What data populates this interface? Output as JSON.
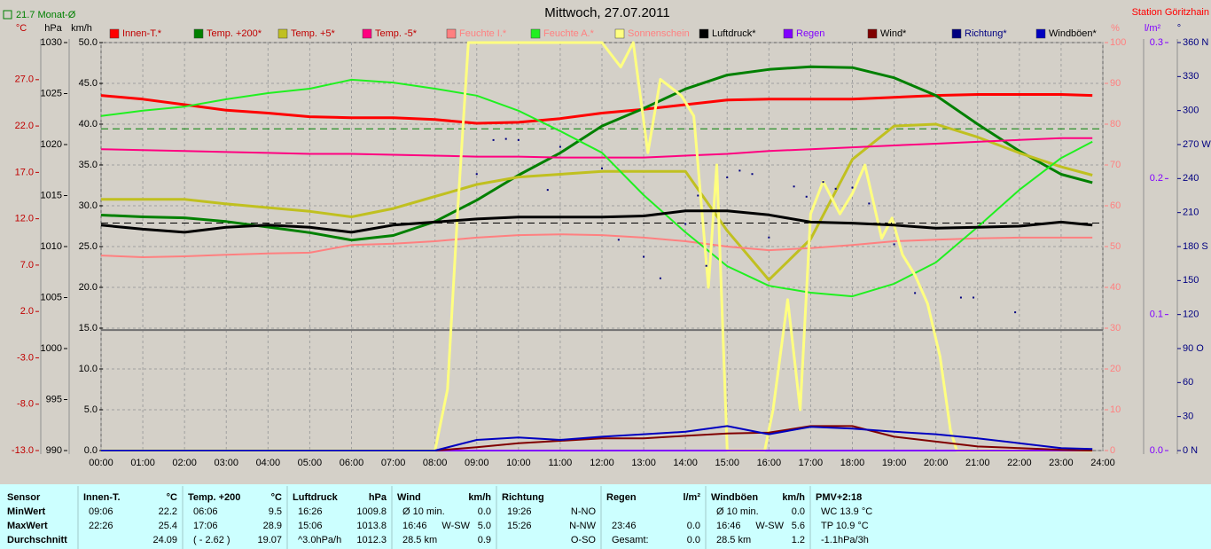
{
  "chart_data": {
    "type": "line",
    "title": "Mittwoch, 27.07.2011",
    "station": "Station Göritzhain",
    "xlim": [
      0,
      24
    ],
    "xticks": [
      {
        "value": 0,
        "label": "00:00"
      },
      {
        "value": 1,
        "label": "01:00"
      },
      {
        "value": 2,
        "label": "02:00"
      },
      {
        "value": 3,
        "label": "03:00"
      },
      {
        "value": 4,
        "label": "04:00"
      },
      {
        "value": 5,
        "label": "05:00"
      },
      {
        "value": 6,
        "label": "06:00"
      },
      {
        "value": 7,
        "label": "07:00"
      },
      {
        "value": 8,
        "label": "08:00"
      },
      {
        "value": 9,
        "label": "09:00"
      },
      {
        "value": 10,
        "label": "10:00"
      },
      {
        "value": 11,
        "label": "11:00"
      },
      {
        "value": 12,
        "label": "12:00"
      },
      {
        "value": 13,
        "label": "13:00"
      },
      {
        "value": 14,
        "label": "14:00"
      },
      {
        "value": 15,
        "label": "15:00"
      },
      {
        "value": 16,
        "label": "16:00"
      },
      {
        "value": 17,
        "label": "17:00"
      },
      {
        "value": 18,
        "label": "18:00"
      },
      {
        "value": 19,
        "label": "19:00"
      },
      {
        "value": 20,
        "label": "20:00"
      },
      {
        "value": 21,
        "label": "21:00"
      },
      {
        "value": 22,
        "label": "22:00"
      },
      {
        "value": 23,
        "label": "23:00"
      },
      {
        "value": 24,
        "label": "24:00"
      }
    ],
    "grid": true,
    "axes": {
      "temp": {
        "title": "°C",
        "color": "#c00000",
        "lim": [
          -13,
          31
        ],
        "ticks": [
          {
            "value": -13,
            "label": "-13.0"
          },
          {
            "value": -8,
            "label": "-8.0"
          },
          {
            "value": -3,
            "label": "-3.0"
          },
          {
            "value": 2,
            "label": "2.0"
          },
          {
            "value": 7,
            "label": "7.0"
          },
          {
            "value": 12,
            "label": "12.0"
          },
          {
            "value": 17,
            "label": "17.0"
          },
          {
            "value": 22,
            "label": "22.0"
          },
          {
            "value": 27,
            "label": "27.0"
          }
        ]
      },
      "press": {
        "title": "hPa",
        "color": "#000000",
        "lim": [
          990,
          1030
        ],
        "ticks": [
          990,
          995,
          1000,
          1005,
          1010,
          1015,
          1020,
          1025,
          1030
        ]
      },
      "speed": {
        "title": "km/h",
        "color": "#000000",
        "lim": [
          0,
          50
        ],
        "ticks": [
          {
            "value": 0,
            "label": "0.0"
          },
          {
            "value": 5,
            "label": "5.0"
          },
          {
            "value": 10,
            "label": "10.0"
          },
          {
            "value": 15,
            "label": "15.0"
          },
          {
            "value": 20,
            "label": "20.0"
          },
          {
            "value": 25,
            "label": "25.0"
          },
          {
            "value": 30,
            "label": "30.0"
          },
          {
            "value": 35,
            "label": "35.0"
          },
          {
            "value": 40,
            "label": "40.0"
          },
          {
            "value": 45,
            "label": "45.0"
          },
          {
            "value": 50,
            "label": "50.0"
          }
        ]
      },
      "pct": {
        "title": "%",
        "color": "#ff8080",
        "lim": [
          0,
          100
        ],
        "ticks": [
          0,
          10,
          20,
          30,
          40,
          50,
          60,
          70,
          80,
          90,
          100
        ]
      },
      "rain": {
        "title": "l/m²",
        "color": "#8000ff",
        "lim": [
          0,
          0.3
        ],
        "ticks": [
          {
            "value": 0,
            "label": "0.0"
          },
          0.1,
          0.2,
          0.3
        ]
      },
      "dir": {
        "title": "°",
        "color": "#000080",
        "lim": [
          0,
          360
        ],
        "ticks": [
          {
            "value": 0,
            "label": "0 N"
          },
          30,
          60,
          {
            "value": 90,
            "label": "90 O"
          },
          120,
          150,
          {
            "value": 180,
            "label": "180 S"
          },
          210,
          240,
          {
            "value": 270,
            "label": "270 W"
          },
          300,
          330,
          {
            "value": 360,
            "label": "360 N"
          }
        ]
      }
    },
    "reference_lines": [
      {
        "axis": "temp",
        "value": 21.7,
        "label": "21.7 Monat-Ø",
        "color": "#008000",
        "dashed": true
      },
      {
        "axis": "temp",
        "value": 0,
        "color": "#707070",
        "dashed": false
      },
      {
        "axis": "press",
        "value": 1012.3,
        "color": "#000000",
        "dashed": true
      }
    ],
    "x": [
      0,
      1,
      2,
      3,
      4,
      5,
      6,
      7,
      8,
      9,
      10,
      11,
      12,
      13,
      14,
      15,
      16,
      17,
      18,
      19,
      20,
      21,
      22,
      23,
      23.75
    ],
    "series": [
      {
        "name": "Innen-T.*",
        "axis": "temp",
        "color": "#ff0000",
        "width": 3,
        "values": [
          25.3,
          24.9,
          24.3,
          23.7,
          23.4,
          23.0,
          22.9,
          22.9,
          22.7,
          22.3,
          22.4,
          22.8,
          23.4,
          23.8,
          24.3,
          24.8,
          24.9,
          24.9,
          24.9,
          25.1,
          25.3,
          25.4,
          25.4,
          25.4,
          25.3
        ]
      },
      {
        "name": "Temp. +200*",
        "axis": "temp",
        "color": "#008000",
        "width": 3,
        "values": [
          12.4,
          12.2,
          12.1,
          11.7,
          11.1,
          10.5,
          9.7,
          10.2,
          11.7,
          14.0,
          16.7,
          19.1,
          22.0,
          23.9,
          26.0,
          27.5,
          28.1,
          28.4,
          28.3,
          27.2,
          25.3,
          22.2,
          19.3,
          16.8,
          15.9
        ]
      },
      {
        "name": "Temp. +5*",
        "axis": "temp",
        "color": "#c0c020",
        "width": 3,
        "values": [
          14.1,
          14.1,
          14.1,
          13.6,
          13.2,
          12.8,
          12.2,
          13.1,
          14.4,
          15.7,
          16.5,
          16.8,
          17.1,
          17.1,
          17.1,
          10.7,
          5.4,
          9.8,
          18.4,
          22.0,
          22.2,
          20.8,
          19.1,
          17.6,
          16.7
        ]
      },
      {
        "name": "Temp. -5*",
        "axis": "temp",
        "color": "#ff0080",
        "width": 2,
        "values": [
          19.5,
          19.4,
          19.3,
          19.2,
          19.1,
          19.0,
          19.0,
          18.9,
          18.8,
          18.7,
          18.7,
          18.6,
          18.6,
          18.6,
          18.8,
          19.0,
          19.3,
          19.5,
          19.7,
          19.9,
          20.1,
          20.3,
          20.5,
          20.7,
          20.7
        ]
      },
      {
        "name": "Feuchte I.*",
        "axis": "pct",
        "color": "#ff8080",
        "width": 2,
        "values": [
          47.8,
          47.4,
          47.6,
          48.0,
          48.3,
          48.5,
          50.4,
          50.7,
          51.3,
          52.2,
          52.8,
          53.0,
          52.8,
          52.2,
          51.3,
          50.0,
          49.1,
          49.6,
          50.4,
          51.3,
          51.7,
          52.0,
          52.2,
          52.2,
          52.2
        ]
      },
      {
        "name": "Feuchte A.*",
        "axis": "pct",
        "color": "#20f020",
        "width": 2,
        "values": [
          82.0,
          83.3,
          84.3,
          86.1,
          87.6,
          88.7,
          90.9,
          90.2,
          88.7,
          87.0,
          83.3,
          78.3,
          73.0,
          62.6,
          53.5,
          45.2,
          40.4,
          38.7,
          37.8,
          40.9,
          46.1,
          54.8,
          63.9,
          71.7,
          75.7
        ]
      },
      {
        "name": "Sonnenschein",
        "axis": "pct",
        "color": "#ffff80",
        "width": 3,
        "x": [
          0,
          8.0,
          8.3,
          8.55,
          8.8,
          12.0,
          12.45,
          12.75,
          13.1,
          13.4,
          13.9,
          14.2,
          14.55,
          14.75,
          15.0,
          15.9,
          16.1,
          16.45,
          16.75,
          17.0,
          17.3,
          17.7,
          18.0,
          18.3,
          18.7,
          18.95,
          19.2,
          19.5,
          19.8,
          20.1,
          20.35,
          20.5,
          23.75
        ],
        "values": [
          0,
          0,
          15,
          60,
          100,
          100,
          94,
          100,
          73,
          91,
          87,
          82,
          40,
          70,
          0,
          0,
          10,
          37,
          10,
          58,
          66,
          58,
          63,
          70,
          52,
          57,
          48,
          43,
          36,
          23,
          5,
          0,
          0
        ]
      },
      {
        "name": "Luftdruck*",
        "axis": "press",
        "color": "#000000",
        "width": 3,
        "values": [
          1012.1,
          1011.7,
          1011.4,
          1011.9,
          1012.1,
          1011.9,
          1011.4,
          1012.1,
          1012.4,
          1012.7,
          1012.9,
          1012.9,
          1012.9,
          1013.0,
          1013.5,
          1013.5,
          1013.1,
          1012.4,
          1012.3,
          1012.1,
          1011.8,
          1011.9,
          1012.0,
          1012.4,
          1012.1
        ]
      },
      {
        "name": "Regen",
        "axis": "rain",
        "color": "#8000ff",
        "width": 2,
        "values": [
          0,
          0,
          0,
          0,
          0,
          0,
          0,
          0,
          0,
          0,
          0,
          0,
          0,
          0,
          0,
          0,
          0,
          0,
          0,
          0,
          0,
          0,
          0,
          0,
          0
        ]
      },
      {
        "name": "Wind*",
        "axis": "speed",
        "color": "#800000",
        "width": 2,
        "values": [
          0,
          0,
          0,
          0,
          0,
          0,
          0,
          0,
          0,
          0.4,
          0.9,
          1.2,
          1.5,
          1.5,
          1.8,
          2.1,
          2.2,
          3.0,
          3.0,
          1.7,
          1.1,
          0.5,
          0.3,
          0.1,
          0
        ]
      },
      {
        "name": "Richtung*",
        "axis": "dir",
        "color": "#000080",
        "style": "dots",
        "x": [
          9.0,
          9.4,
          9.7,
          10.0,
          10.7,
          11.0,
          12.0,
          12.4,
          13.0,
          13.4,
          14.0,
          14.3,
          14.5,
          15.0,
          15.3,
          15.6,
          16.0,
          16.6,
          16.9,
          17.3,
          17.6,
          18.0,
          18.4,
          19.0,
          19.5,
          20.6,
          20.9,
          21.9
        ],
        "values": [
          244,
          274,
          275,
          274,
          230,
          268,
          249,
          186,
          171,
          152,
          200,
          225,
          163,
          241,
          247,
          244,
          188,
          233,
          224,
          237,
          231,
          232,
          218,
          182,
          139,
          135,
          135,
          122
        ]
      },
      {
        "name": "Windböen*",
        "axis": "speed",
        "color": "#0000c0",
        "width": 2,
        "values": [
          0,
          0,
          0,
          0,
          0,
          0,
          0,
          0,
          0,
          1.3,
          1.6,
          1.3,
          1.7,
          2.0,
          2.3,
          3.0,
          2.0,
          2.9,
          2.7,
          2.3,
          2.0,
          1.5,
          0.9,
          0.3,
          0.2
        ]
      }
    ]
  },
  "stats_table": {
    "header": "Sensor",
    "row_labels": [
      "MinWert",
      "MaxWert",
      "Durchschnitt"
    ],
    "columns": [
      {
        "name": "Innen-T.",
        "unit": "°C",
        "rows": [
          [
            "09:06",
            null,
            "22.2"
          ],
          [
            "22:26",
            null,
            "25.4"
          ],
          [
            null,
            null,
            "24.09"
          ]
        ]
      },
      {
        "name": "Temp. +200",
        "unit": "°C",
        "rows": [
          [
            "06:06",
            null,
            "9.5"
          ],
          [
            "17:06",
            null,
            "28.9"
          ],
          [
            "( - 2.62 )",
            null,
            "19.07"
          ]
        ]
      },
      {
        "name": "Luftdruck",
        "unit": "hPa",
        "rows": [
          [
            "16:26",
            null,
            "1009.8"
          ],
          [
            "15:06",
            null,
            "1013.8"
          ],
          [
            "^3.0hPa/h",
            null,
            "1012.3"
          ]
        ]
      },
      {
        "name": "Wind",
        "unit": "km/h",
        "rows": [
          [
            "Ø 10 min.",
            null,
            "0.0"
          ],
          [
            "16:46",
            "W-SW",
            "5.0"
          ],
          [
            "28.5 km",
            null,
            "0.9"
          ]
        ]
      },
      {
        "name": "Richtung",
        "unit": null,
        "rows": [
          [
            "19:26",
            null,
            "N-NO"
          ],
          [
            "15:26",
            null,
            "N-NW"
          ],
          [
            null,
            null,
            "O-SO"
          ]
        ]
      },
      {
        "name": "Regen",
        "unit": "l/m²",
        "rows": [
          [
            null,
            null,
            null
          ],
          [
            "23:46",
            null,
            "0.0"
          ],
          [
            "Gesamt:",
            null,
            "0.0"
          ]
        ]
      },
      {
        "name": "Windböen",
        "unit": "km/h",
        "rows": [
          [
            "Ø 10 min.",
            null,
            "0.0"
          ],
          [
            "16:46",
            "W-SW",
            "5.6"
          ],
          [
            "28.5 km",
            null,
            "1.2"
          ]
        ]
      },
      {
        "name": "PMV+2:18",
        "unit": null,
        "rows": [
          [
            "WC 13.9 °C",
            null,
            null
          ],
          [
            "TP 10.9 °C",
            null,
            null
          ],
          [
            "-1.1hPa/3h",
            null,
            null
          ]
        ]
      }
    ]
  }
}
